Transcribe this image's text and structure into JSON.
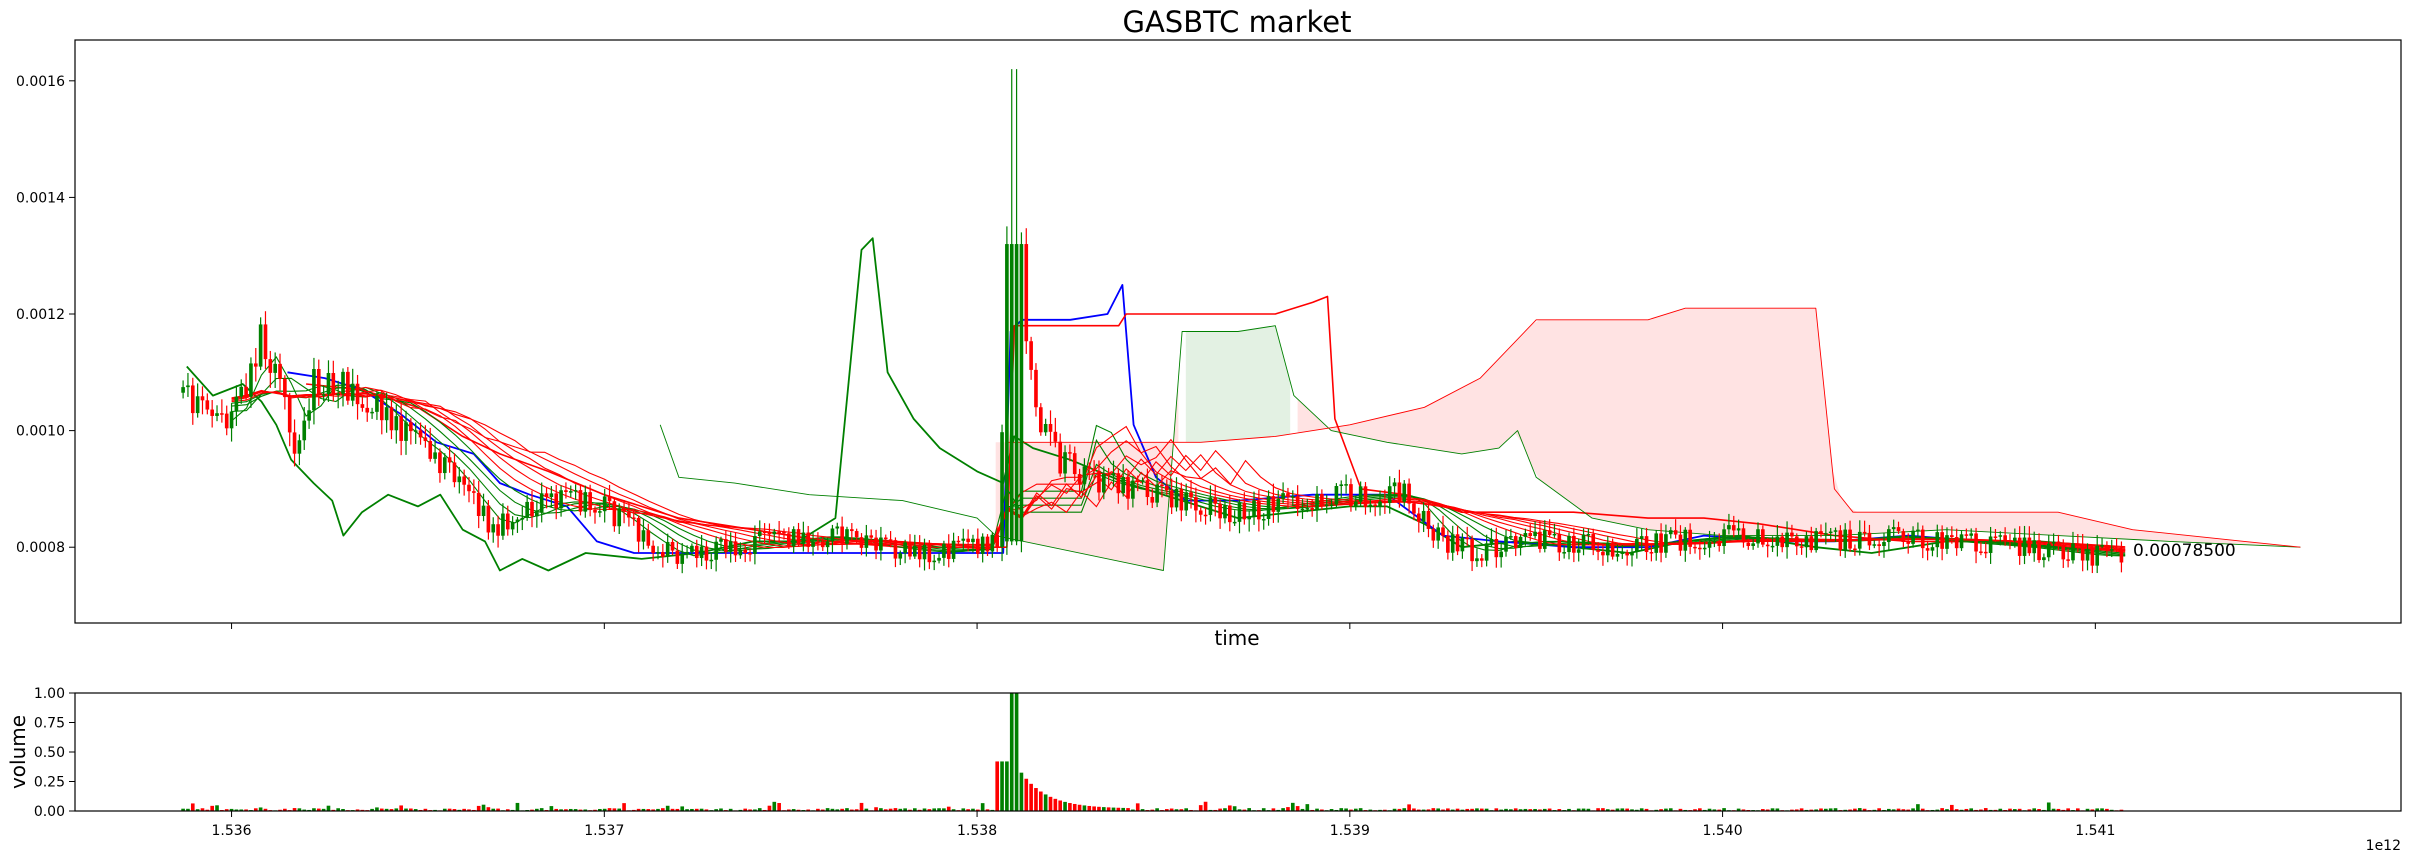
{
  "chart_data": [
    {
      "type": "candlestick",
      "title": "GASBTC market",
      "xlabel": "time",
      "ylabel": "",
      "xlim": [
        1535580000000,
        1541820000000
      ],
      "ylim": [
        0.00067,
        0.00167
      ],
      "x_ticks": [
        1536000000000,
        1537000000000,
        1538000000000,
        1539000000000,
        1540000000000,
        1541000000000
      ],
      "y_ticks": [
        0.0008,
        0.001,
        0.0012,
        0.0014,
        0.0016
      ],
      "y_tick_labels": [
        "0.0008",
        "0.0010",
        "0.0012",
        "0.0014",
        "0.0016"
      ],
      "last_price_label": "0.00078500",
      "last_price": 0.000785,
      "grid": false,
      "colors": {
        "up": "#008000",
        "down": "#ff0000",
        "blue": "#0000ff",
        "cloud_down": "#ffcccc",
        "cloud_up": "#cce5cc"
      },
      "candle_anchors": [
        [
          1535880000000,
          0.001065
        ],
        [
          1535950000000,
          0.00101
        ],
        [
          1536000000000,
          0.00102
        ],
        [
          1536050000000,
          0.0011
        ],
        [
          1536080000000,
          0.00116
        ],
        [
          1536120000000,
          0.0011
        ],
        [
          1536170000000,
          0.00098
        ],
        [
          1536220000000,
          0.00108
        ],
        [
          1536300000000,
          0.00108
        ],
        [
          1536380000000,
          0.00105
        ],
        [
          1536450000000,
          0.001
        ],
        [
          1536520000000,
          0.00097
        ],
        [
          1536600000000,
          0.00092
        ],
        [
          1536700000000,
          0.00083
        ],
        [
          1536800000000,
          0.00087
        ],
        [
          1536900000000,
          0.00088
        ],
        [
          1537000000000,
          0.00087
        ],
        [
          1537100000000,
          0.00082
        ],
        [
          1537200000000,
          0.00078
        ],
        [
          1537300000000,
          0.0008
        ],
        [
          1537450000000,
          0.00081
        ],
        [
          1537600000000,
          0.00082
        ],
        [
          1537750000000,
          0.0008
        ],
        [
          1537900000000,
          0.00079
        ],
        [
          1538000000000,
          0.0008
        ],
        [
          1538060000000,
          0.00081
        ],
        [
          1538080000000,
          0.00131
        ],
        [
          1538110000000,
          0.00123
        ],
        [
          1538160000000,
          0.00102
        ],
        [
          1538220000000,
          0.00095
        ],
        [
          1538300000000,
          0.00092
        ],
        [
          1538400000000,
          0.0009
        ],
        [
          1538500000000,
          0.00089
        ],
        [
          1538600000000,
          0.00087
        ],
        [
          1538700000000,
          0.00086
        ],
        [
          1538800000000,
          0.00087
        ],
        [
          1538900000000,
          0.00088
        ],
        [
          1539000000000,
          0.00089
        ],
        [
          1539150000000,
          0.00089
        ],
        [
          1539250000000,
          0.00081
        ],
        [
          1539350000000,
          0.00079
        ],
        [
          1539450000000,
          0.00081
        ],
        [
          1539550000000,
          0.00081
        ],
        [
          1539700000000,
          0.0008
        ],
        [
          1539850000000,
          0.00081
        ],
        [
          1540000000000,
          0.00082
        ],
        [
          1540150000000,
          0.00081
        ],
        [
          1540300000000,
          0.00081
        ],
        [
          1540450000000,
          0.00082
        ],
        [
          1540600000000,
          0.00081
        ],
        [
          1540800000000,
          0.0008
        ],
        [
          1541000000000,
          0.000785
        ],
        [
          1541080000000,
          0.000785
        ]
      ],
      "lines": [
        {
          "color": "#008000",
          "width": 1.8,
          "points": [
            [
              1535880000000,
              0.00111
            ],
            [
              1535950000000,
              0.00106
            ],
            [
              1536030000000,
              0.00108
            ],
            [
              1536080000000,
              0.00105
            ],
            [
              1536120000000,
              0.00101
            ],
            [
              1536160000000,
              0.00095
            ],
            [
              1536220000000,
              0.00091
            ],
            [
              1536270000000,
              0.00088
            ],
            [
              1536300000000,
              0.00082
            ],
            [
              1536350000000,
              0.00086
            ],
            [
              1536420000000,
              0.00089
            ],
            [
              1536500000000,
              0.00087
            ],
            [
              1536560000000,
              0.00089
            ],
            [
              1536620000000,
              0.00083
            ],
            [
              1536680000000,
              0.00081
            ],
            [
              1536720000000,
              0.00076
            ],
            [
              1536780000000,
              0.00078
            ],
            [
              1536850000000,
              0.00076
            ],
            [
              1536950000000,
              0.00079
            ],
            [
              1537100000000,
              0.00078
            ],
            [
              1537250000000,
              0.00079
            ],
            [
              1537400000000,
              0.00081
            ],
            [
              1537520000000,
              0.00081
            ],
            [
              1537620000000,
              0.00085
            ],
            [
              1537690000000,
              0.00131
            ],
            [
              1537720000000,
              0.00133
            ],
            [
              1537760000000,
              0.0011
            ],
            [
              1537830000000,
              0.00102
            ],
            [
              1537900000000,
              0.00097
            ],
            [
              1538000000000,
              0.00093
            ],
            [
              1538070000000,
              0.00091
            ],
            [
              1538100000000,
              0.00099
            ],
            [
              1538150000000,
              0.00097
            ],
            [
              1538250000000,
              0.00095
            ],
            [
              1538400000000,
              0.00091
            ],
            [
              1538550000000,
              0.00088
            ],
            [
              1538700000000,
              0.00085
            ],
            [
              1538850000000,
              0.00086
            ],
            [
              1539000000000,
              0.00087
            ],
            [
              1539100000000,
              0.00087
            ],
            [
              1539200000000,
              0.00084
            ],
            [
              1539300000000,
              0.0008
            ],
            [
              1539450000000,
              0.00081
            ],
            [
              1539600000000,
              0.0008
            ],
            [
              1539750000000,
              0.00079
            ],
            [
              1539900000000,
              0.00081
            ],
            [
              1540050000000,
              0.00082
            ],
            [
              1540250000000,
              0.0008
            ],
            [
              1540400000000,
              0.00079
            ],
            [
              1540600000000,
              0.00081
            ],
            [
              1540850000000,
              0.00081
            ],
            [
              1541050000000,
              0.0008
            ]
          ]
        },
        {
          "color": "#0000ff",
          "width": 1.8,
          "points": [
            [
              1536150000000,
              0.0011
            ],
            [
              1536250000000,
              0.00109
            ],
            [
              1536350000000,
              0.00107
            ],
            [
              1536450000000,
              0.00103
            ],
            [
              1536550000000,
              0.00098
            ],
            [
              1536650000000,
              0.00096
            ],
            [
              1536720000000,
              0.00091
            ],
            [
              1536800000000,
              0.00089
            ],
            [
              1536900000000,
              0.00087
            ],
            [
              1536980000000,
              0.00081
            ],
            [
              1537080000000,
              0.00079
            ],
            [
              1537200000000,
              0.00079
            ],
            [
              1537400000000,
              0.00079
            ],
            [
              1537600000000,
              0.00079
            ],
            [
              1537800000000,
              0.00079
            ],
            [
              1537950000000,
              0.00079
            ],
            [
              1538070000000,
              0.00079
            ],
            [
              1538090000000,
              0.00117
            ],
            [
              1538120000000,
              0.00119
            ],
            [
              1538250000000,
              0.00119
            ],
            [
              1538350000000,
              0.0012
            ],
            [
              1538390000000,
              0.00125
            ],
            [
              1538420000000,
              0.00101
            ],
            [
              1538480000000,
              0.00092
            ],
            [
              1538560000000,
              0.00088
            ],
            [
              1538700000000,
              0.00088
            ],
            [
              1538900000000,
              0.00089
            ],
            [
              1539100000000,
              0.00089
            ],
            [
              1539250000000,
              0.00082
            ],
            [
              1539400000000,
              0.00081
            ],
            [
              1539600000000,
              0.0008
            ],
            [
              1539800000000,
              0.0008
            ],
            [
              1539950000000,
              0.00082
            ],
            [
              1540150000000,
              0.00081
            ],
            [
              1540300000000,
              0.00081
            ],
            [
              1540500000000,
              0.00082
            ],
            [
              1540700000000,
              0.00081
            ],
            [
              1540900000000,
              0.0008
            ],
            [
              1541050000000,
              0.000795
            ]
          ]
        },
        {
          "color": "#ff0000",
          "width": 1.6,
          "points": [
            [
              1536200000000,
              0.00108
            ],
            [
              1536350000000,
              0.00107
            ],
            [
              1536500000000,
              0.00104
            ],
            [
              1536620000000,
              0.00099
            ],
            [
              1536720000000,
              0.00096
            ],
            [
              1536850000000,
              0.00093
            ],
            [
              1537000000000,
              0.00089
            ],
            [
              1537200000000,
              0.00085
            ],
            [
              1537400000000,
              0.00083
            ],
            [
              1537600000000,
              0.00081
            ],
            [
              1537800000000,
              0.0008
            ],
            [
              1537950000000,
              0.0008
            ],
            [
              1538080000000,
              0.0008
            ],
            [
              1538100000000,
              0.00118
            ],
            [
              1538200000000,
              0.00118
            ],
            [
              1538380000000,
              0.00118
            ],
            [
              1538400000000,
              0.0012
            ],
            [
              1538600000000,
              0.0012
            ],
            [
              1538800000000,
              0.0012
            ],
            [
              1538900000000,
              0.00122
            ],
            [
              1538940000000,
              0.00123
            ],
            [
              1538960000000,
              0.00102
            ],
            [
              1539030000000,
              0.0009
            ],
            [
              1539150000000,
              0.00089
            ],
            [
              1539300000000,
              0.00086
            ],
            [
              1539450000000,
              0.00086
            ],
            [
              1539600000000,
              0.00086
            ],
            [
              1539800000000,
              0.00085
            ],
            [
              1539950000000,
              0.00085
            ],
            [
              1540100000000,
              0.00084
            ],
            [
              1540300000000,
              0.00082
            ],
            [
              1540500000000,
              0.00081
            ],
            [
              1540700000000,
              0.00081
            ],
            [
              1540900000000,
              0.0008
            ],
            [
              1541080000000,
              0.000795
            ]
          ]
        },
        {
          "color": "#008000",
          "width": 0.9,
          "points": [
            [
              1537150000000,
              0.00101
            ],
            [
              1537200000000,
              0.00092
            ],
            [
              1537350000000,
              0.00091
            ],
            [
              1537550000000,
              0.00089
            ],
            [
              1537800000000,
              0.00088
            ],
            [
              1538000000000,
              0.00085
            ],
            [
              1538050000000,
              0.00082
            ],
            [
              1538500000000,
              0.00076
            ],
            [
              1538550000000,
              0.00117
            ],
            [
              1538700000000,
              0.00117
            ],
            [
              1538800000000,
              0.00118
            ],
            [
              1538850000000,
              0.00106
            ],
            [
              1538950000000,
              0.001
            ],
            [
              1539100000000,
              0.00098
            ],
            [
              1539300000000,
              0.00096
            ],
            [
              1539400000000,
              0.00097
            ],
            [
              1539450000000,
              0.001
            ],
            [
              1539500000000,
              0.00092
            ],
            [
              1539650000000,
              0.00085
            ],
            [
              1539800000000,
              0.00083
            ],
            [
              1540000000000,
              0.00082
            ],
            [
              1540300000000,
              0.00082
            ],
            [
              1540600000000,
              0.00083
            ],
            [
              1540900000000,
              0.00082
            ],
            [
              1541200000000,
              0.00081
            ],
            [
              1541550000000,
              0.0008
            ]
          ]
        },
        {
          "color": "#ff0000",
          "width": 0.9,
          "points": [
            [
              1538080000000,
              0.00098
            ],
            [
              1538200000000,
              0.00098
            ],
            [
              1538600000000,
              0.00098
            ],
            [
              1538800000000,
              0.00099
            ],
            [
              1539000000000,
              0.00101
            ],
            [
              1539200000000,
              0.00104
            ],
            [
              1539350000000,
              0.00109
            ],
            [
              1539500000000,
              0.00119
            ],
            [
              1539700000000,
              0.00119
            ],
            [
              1539800000000,
              0.00119
            ],
            [
              1539900000000,
              0.00121
            ],
            [
              1540100000000,
              0.00121
            ],
            [
              1540250000000,
              0.00121
            ],
            [
              1540300000000,
              0.0009
            ],
            [
              1540350000000,
              0.00086
            ],
            [
              1540500000000,
              0.00086
            ],
            [
              1540900000000,
              0.00086
            ],
            [
              1541100000000,
              0.00083
            ],
            [
              1541400000000,
              0.00081
            ],
            [
              1541550000000,
              0.0008
            ]
          ]
        }
      ]
    },
    {
      "type": "bar",
      "title": "",
      "xlabel": "",
      "ylabel": "volume",
      "xlim": [
        1535580000000,
        1541820000000
      ],
      "ylim": [
        0,
        1.0
      ],
      "x_ticks": [
        1536000000000,
        1537000000000,
        1538000000000,
        1539000000000,
        1540000000000,
        1541000000000
      ],
      "x_tick_labels": [
        "1.536",
        "1.537",
        "1.538",
        "1.539",
        "1.540",
        "1.541"
      ],
      "y_ticks": [
        0,
        0.25,
        0.5,
        0.75,
        1.0
      ],
      "y_tick_labels": [
        "0.00",
        "0.25",
        "0.50",
        "0.75",
        "1.00"
      ],
      "offset_label": "1e12",
      "peak_volume": 1.0,
      "peak_time": 1538100000000,
      "grid": false
    }
  ]
}
